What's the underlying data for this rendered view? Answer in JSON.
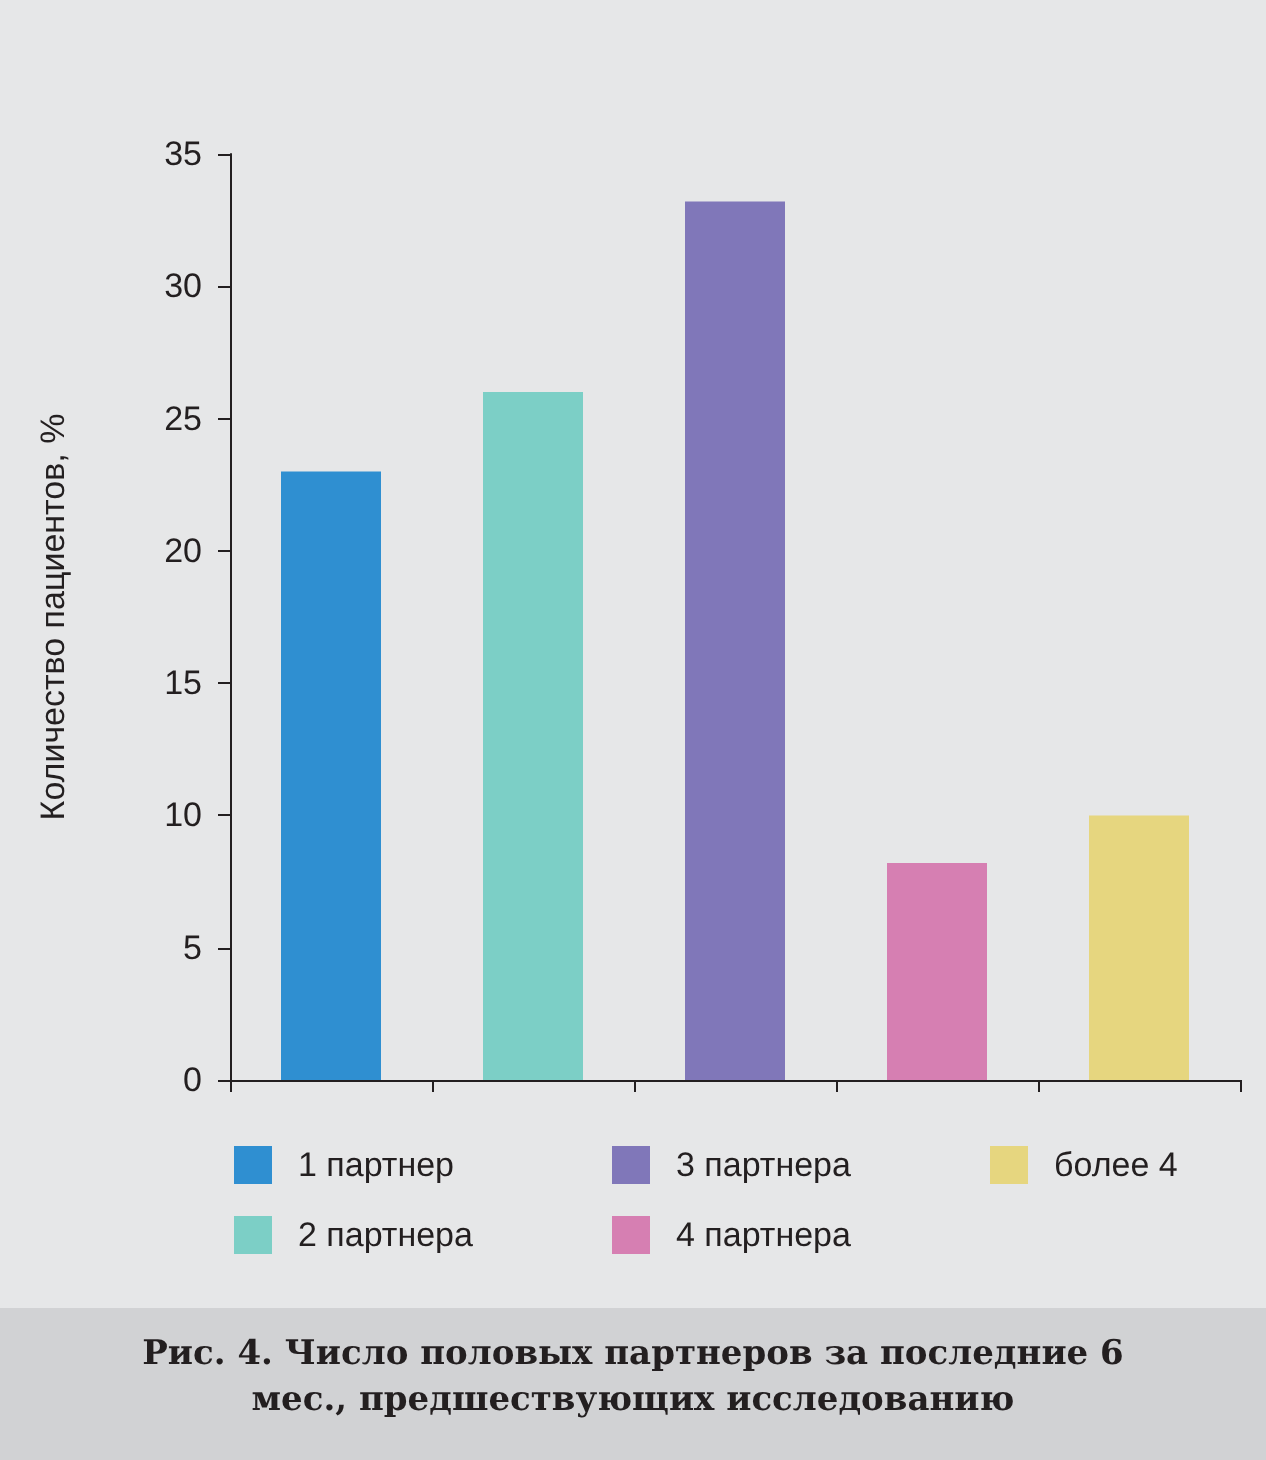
{
  "chart_data": {
    "type": "bar",
    "title": "Рис. 4. Число половых партнеров за последние 6 мес., предшествующих исследованию",
    "ylabel": "Количество пациентов, %",
    "categories": [
      null,
      null,
      null,
      null,
      null
    ],
    "series": [
      {
        "name": "1 партнер",
        "color": "#2f8fd1",
        "values": [
          23,
          null,
          null,
          null,
          null
        ]
      },
      {
        "name": "2 партнера",
        "color": "#7ccfc6",
        "values": [
          null,
          26,
          null,
          null,
          null
        ]
      },
      {
        "name": "3 партнера",
        "color": "#8077b9",
        "values": [
          null,
          null,
          33.2,
          null,
          null
        ]
      },
      {
        "name": "4 партнера",
        "color": "#d67fb2",
        "values": [
          null,
          null,
          null,
          8.2,
          null
        ]
      },
      {
        "name": "более 4",
        "color": "#e6d67f",
        "values": [
          null,
          null,
          null,
          null,
          10
        ]
      }
    ],
    "ylim": [
      0,
      35
    ],
    "yticks": [
      0,
      5,
      10,
      15,
      20,
      25,
      30,
      35
    ],
    "tick_labels": "y",
    "legend": "bottom",
    "grid": false
  }
}
